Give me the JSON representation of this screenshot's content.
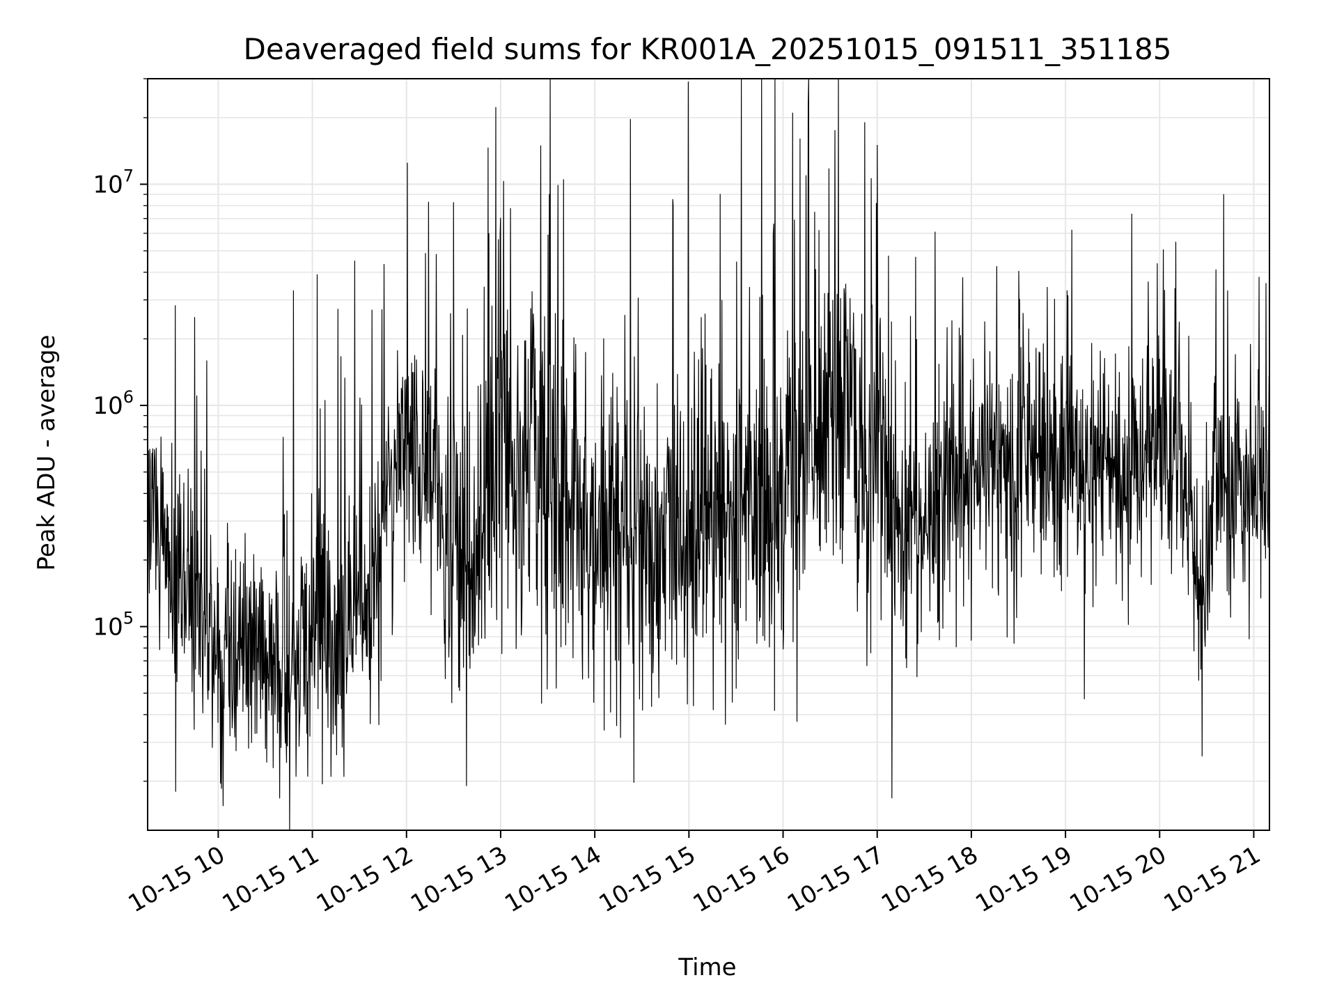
{
  "chart_data": {
    "type": "line",
    "title": "Deaveraged field sums for KR001A_20251015_091511_351185",
    "xlabel": "Time",
    "ylabel": "Peak ADU - average",
    "yscale": "log",
    "ylim": [
      12000,
      30000000
    ],
    "xlim": [
      "2025-10-15 09:15",
      "2025-10-15 21:10"
    ],
    "grid": true,
    "line_color": "#000000",
    "grid_color": "#e6e6e6",
    "x_ticks": [
      {
        "t": "2025-10-15 10:00",
        "label": "10-15 10"
      },
      {
        "t": "2025-10-15 11:00",
        "label": "10-15 11"
      },
      {
        "t": "2025-10-15 12:00",
        "label": "10-15 12"
      },
      {
        "t": "2025-10-15 13:00",
        "label": "10-15 13"
      },
      {
        "t": "2025-10-15 14:00",
        "label": "10-15 14"
      },
      {
        "t": "2025-10-15 15:00",
        "label": "10-15 15"
      },
      {
        "t": "2025-10-15 16:00",
        "label": "10-15 16"
      },
      {
        "t": "2025-10-15 17:00",
        "label": "10-15 17"
      },
      {
        "t": "2025-10-15 18:00",
        "label": "10-15 18"
      },
      {
        "t": "2025-10-15 19:00",
        "label": "10-15 19"
      },
      {
        "t": "2025-10-15 20:00",
        "label": "10-15 20"
      },
      {
        "t": "2025-10-15 21:00",
        "label": "10-15 21"
      }
    ],
    "y_ticks": [
      {
        "value": 100000,
        "mantissa": "10",
        "exponent": "5"
      },
      {
        "value": 1000000,
        "mantissa": "10",
        "exponent": "6"
      },
      {
        "value": 10000000,
        "mantissa": "10",
        "exponent": "7"
      }
    ],
    "series": [
      {
        "envelope": [
          {
            "t": "2025-10-15 09:15",
            "median": 400000,
            "spread": 3
          },
          {
            "t": "2025-10-15 09:30",
            "median": 200000,
            "spread": 3
          },
          {
            "t": "2025-10-15 09:45",
            "median": 110000,
            "spread": 3.2
          },
          {
            "t": "2025-10-15 10:00",
            "median": 90000,
            "spread": 3
          },
          {
            "t": "2025-10-15 10:15",
            "median": 80000,
            "spread": 2.8
          },
          {
            "t": "2025-10-15 10:30",
            "median": 65000,
            "spread": 2.8
          },
          {
            "t": "2025-10-15 10:45",
            "median": 60000,
            "spread": 2.8
          },
          {
            "t": "2025-10-15 11:00",
            "median": 80000,
            "spread": 3
          },
          {
            "t": "2025-10-15 11:15",
            "median": 90000,
            "spread": 3.2
          },
          {
            "t": "2025-10-15 11:30",
            "median": 110000,
            "spread": 3.5
          },
          {
            "t": "2025-10-15 11:40",
            "median": 150000,
            "spread": 3.5
          },
          {
            "t": "2025-10-15 11:50",
            "median": 500000,
            "spread": 3
          },
          {
            "t": "2025-10-15 12:00",
            "median": 650000,
            "spread": 3
          },
          {
            "t": "2025-10-15 12:15",
            "median": 500000,
            "spread": 3
          },
          {
            "t": "2025-10-15 12:30",
            "median": 250000,
            "spread": 4
          },
          {
            "t": "2025-10-15 12:45",
            "median": 200000,
            "spread": 4.5
          },
          {
            "t": "2025-10-15 13:00",
            "median": 600000,
            "spread": 4.5
          },
          {
            "t": "2025-10-15 13:30",
            "median": 400000,
            "spread": 5
          },
          {
            "t": "2025-10-15 14:00",
            "median": 250000,
            "spread": 4.5
          },
          {
            "t": "2025-10-15 14:30",
            "median": 300000,
            "spread": 4.5
          },
          {
            "t": "2025-10-15 15:00",
            "median": 350000,
            "spread": 5
          },
          {
            "t": "2025-10-15 15:30",
            "median": 300000,
            "spread": 5
          },
          {
            "t": "2025-10-15 16:00",
            "median": 450000,
            "spread": 5
          },
          {
            "t": "2025-10-15 16:30",
            "median": 800000,
            "spread": 5.5
          },
          {
            "t": "2025-10-15 17:00",
            "median": 600000,
            "spread": 5
          },
          {
            "t": "2025-10-15 17:20",
            "median": 250000,
            "spread": 3.5
          },
          {
            "t": "2025-10-15 17:40",
            "median": 350000,
            "spread": 3.5
          },
          {
            "t": "2025-10-15 18:00",
            "median": 500000,
            "spread": 3.2
          },
          {
            "t": "2025-10-15 18:30",
            "median": 550000,
            "spread": 3
          },
          {
            "t": "2025-10-15 19:00",
            "median": 550000,
            "spread": 3
          },
          {
            "t": "2025-10-15 19:30",
            "median": 500000,
            "spread": 3
          },
          {
            "t": "2025-10-15 20:00",
            "median": 650000,
            "spread": 2.8
          },
          {
            "t": "2025-10-15 20:20",
            "median": 500000,
            "spread": 3
          },
          {
            "t": "2025-10-15 20:25",
            "median": 80000,
            "spread": 2
          },
          {
            "t": "2025-10-15 20:35",
            "median": 400000,
            "spread": 3
          },
          {
            "t": "2025-10-15 21:00",
            "median": 450000,
            "spread": 3
          },
          {
            "t": "2025-10-15 21:10",
            "median": 550000,
            "spread": 2.8
          }
        ],
        "peaks": [
          {
            "t": "2025-10-15 09:45",
            "value": 2500000
          },
          {
            "t": "2025-10-15 10:48",
            "value": 3300000
          },
          {
            "t": "2025-10-15 11:03",
            "value": 3900000
          },
          {
            "t": "2025-10-15 11:27",
            "value": 4500000
          },
          {
            "t": "2025-10-15 12:14",
            "value": 8300000
          },
          {
            "t": "2025-10-15 13:02",
            "value": 10300000
          },
          {
            "t": "2025-10-15 13:31",
            "value": 9000000
          },
          {
            "t": "2025-10-15 13:40",
            "value": 10500000
          },
          {
            "t": "2025-10-15 14:50",
            "value": 8000000
          },
          {
            "t": "2025-10-15 15:20",
            "value": 9000000
          },
          {
            "t": "2025-10-15 16:06",
            "value": 21000000
          },
          {
            "t": "2025-10-15 16:33",
            "value": 17500000
          },
          {
            "t": "2025-10-15 16:52",
            "value": 19000000
          },
          {
            "t": "2025-10-15 17:00",
            "value": 15000000
          },
          {
            "t": "2025-10-15 19:04",
            "value": 6200000
          }
        ],
        "troughs": [
          {
            "t": "2025-10-15 09:33",
            "value": 18000
          },
          {
            "t": "2025-10-15 10:35",
            "value": 23000
          },
          {
            "t": "2025-10-15 11:12",
            "value": 21000
          },
          {
            "t": "2025-10-15 11:20",
            "value": 21000
          },
          {
            "t": "2025-10-15 13:26",
            "value": 45000
          },
          {
            "t": "2025-10-15 20:27",
            "value": 26000
          }
        ]
      }
    ]
  }
}
